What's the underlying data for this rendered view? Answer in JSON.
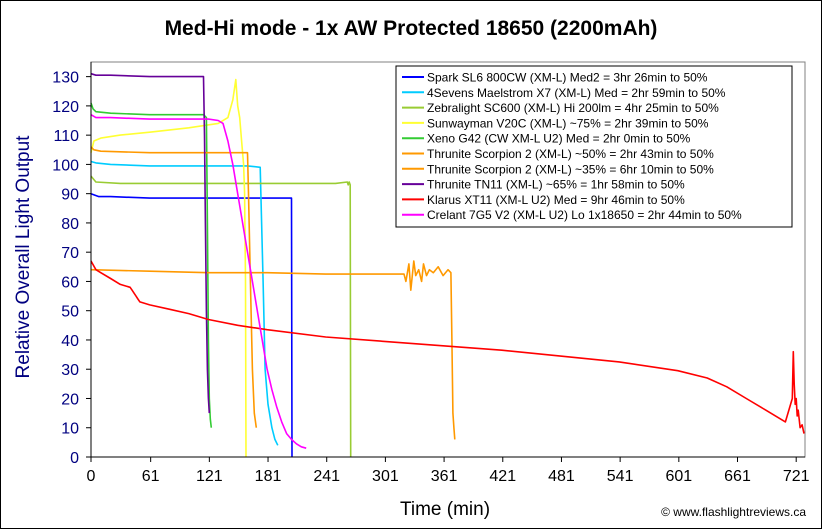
{
  "chart_data": {
    "type": "line",
    "title": "Med-Hi mode - 1x AW Protected 18650 (2200mAh)",
    "xlabel": "Time (min)",
    "ylabel": "Relative Overall Light Output",
    "xlim": [
      0,
      730
    ],
    "ylim": [
      0,
      135
    ],
    "x_ticks": [
      "0",
      "61",
      "121",
      "181",
      "241",
      "301",
      "361",
      "421",
      "481",
      "541",
      "601",
      "661",
      "721"
    ],
    "y_ticks": [
      "0",
      "10",
      "20",
      "30",
      "40",
      "50",
      "60",
      "70",
      "80",
      "90",
      "100",
      "110",
      "120",
      "130"
    ],
    "grid": false,
    "legend_position": "top-right",
    "credit": "© www.flashlightreviews.ca",
    "series": [
      {
        "name": "Spark SL6 800CW (XM-L) Med2 = 3hr 26min to 50%",
        "color": "#0000ff",
        "x": [
          0,
          8,
          20,
          60,
          120,
          180,
          200,
          205,
          205.5
        ],
        "y": [
          90,
          89,
          89,
          88.5,
          88.5,
          88.5,
          88.5,
          88.5,
          0
        ]
      },
      {
        "name": "4Sevens Maelstrom X7 (XM-L) Med = 2hr 59min to 50%",
        "color": "#00ccff",
        "x": [
          0,
          5,
          20,
          60,
          120,
          160,
          173,
          176,
          178,
          181,
          185,
          188,
          191
        ],
        "y": [
          101,
          100.5,
          100,
          99.5,
          99.5,
          99.5,
          99,
          60,
          30,
          18,
          10,
          6,
          4
        ]
      },
      {
        "name": "Zebralight SC600 (XM-L) Hi 200lm = 4hr 25min to 50%",
        "color": "#99cc33",
        "x": [
          0,
          5,
          30,
          60,
          100,
          150,
          200,
          250,
          262,
          263,
          264,
          265,
          265.5
        ],
        "y": [
          96,
          94,
          93.5,
          93.5,
          93.5,
          93.5,
          93.5,
          93.5,
          94,
          93,
          94,
          93,
          0
        ]
      },
      {
        "name": "Sunwayman V20C (XM-L) ~75% = 2hr 39min to 50%",
        "color": "#ffff33",
        "x": [
          0,
          3,
          10,
          30,
          60,
          100,
          130,
          140,
          145,
          148,
          150,
          152,
          154,
          156,
          157,
          158,
          158.5
        ],
        "y": [
          104,
          108,
          109,
          110,
          111,
          112.5,
          114,
          116,
          122,
          129,
          120,
          116,
          108,
          100,
          90,
          60,
          0
        ]
      },
      {
        "name": "Xeno G42 (CW XM-L U2) Med = 2hr 0min to 50%",
        "color": "#33cc33",
        "x": [
          0,
          2,
          5,
          20,
          60,
          115,
          118,
          119,
          120,
          121,
          122,
          123
        ],
        "y": [
          121,
          119,
          118,
          117.5,
          117,
          117,
          116,
          80,
          40,
          20,
          13,
          10
        ]
      },
      {
        "name": "Thrunite Scorpion 2 (XM-L) ~50% = 2hr 43min to 50%",
        "color": "#ff9900",
        "x": [
          0,
          3,
          10,
          60,
          120,
          160,
          161,
          163,
          165,
          167,
          169
        ],
        "y": [
          106,
          105,
          104.5,
          104,
          104,
          104,
          90,
          60,
          30,
          15,
          10
        ]
      },
      {
        "name": "Thrunite Scorpion 2 (XM-L) ~35% = 6hr 10min to 50%",
        "color": "#ff9900",
        "x": [
          0,
          60,
          120,
          180,
          240,
          300,
          320,
          322,
          325,
          327,
          330,
          332,
          335,
          338,
          340,
          343,
          346,
          350,
          355,
          360,
          365,
          368,
          369,
          370,
          371,
          372
        ],
        "y": [
          64,
          63.5,
          63,
          63,
          62.5,
          62.5,
          62.5,
          60,
          66,
          57,
          67,
          62,
          64,
          60,
          66,
          62,
          64,
          63,
          65,
          62,
          64,
          63,
          40,
          15,
          10,
          6
        ]
      },
      {
        "name": "Thrunite TN11 (XM-L) ~65% = 1hr 58min to 50%",
        "color": "#660099",
        "x": [
          0,
          5,
          20,
          60,
          110,
          115,
          116,
          117,
          118,
          119,
          120,
          121
        ],
        "y": [
          131,
          130.5,
          130.5,
          130,
          130,
          130,
          110,
          80,
          50,
          30,
          20,
          15
        ]
      },
      {
        "name": "Klarus XT11 (XM-L U2) Med = 9hr 46min to 50%",
        "color": "#ff0000",
        "x": [
          0,
          5,
          10,
          20,
          30,
          40,
          42,
          44,
          46,
          48,
          50,
          60,
          80,
          100,
          120,
          150,
          180,
          240,
          300,
          360,
          420,
          480,
          540,
          600,
          630,
          650,
          670,
          690,
          710,
          717,
          718,
          719,
          720,
          721,
          722,
          723,
          725,
          727,
          729
        ],
        "y": [
          67,
          64,
          63,
          61,
          59,
          58,
          57,
          56,
          55,
          54,
          53,
          52,
          50.5,
          49,
          47,
          45,
          43.5,
          41,
          39.5,
          38,
          36.5,
          34.5,
          32.5,
          29.5,
          27,
          24,
          20,
          16,
          12,
          20,
          36,
          25,
          18,
          20,
          14,
          16,
          10,
          11,
          8
        ]
      },
      {
        "name": "Crelant 7G5 V2 (XM-L U2) Lo 1x18650 = 2hr 44min to 50%",
        "color": "#ff00ff",
        "x": [
          0,
          5,
          20,
          60,
          100,
          120,
          130,
          135,
          140,
          145,
          150,
          155,
          160,
          165,
          170,
          175,
          180,
          185,
          190,
          195,
          200,
          205,
          210,
          215,
          220
        ],
        "y": [
          117,
          116,
          116,
          115.5,
          115.5,
          115.5,
          115,
          114,
          108,
          100,
          90,
          80,
          70,
          60,
          50,
          40,
          30,
          23,
          17,
          12,
          8,
          6,
          4.5,
          3.5,
          3
        ]
      }
    ]
  }
}
